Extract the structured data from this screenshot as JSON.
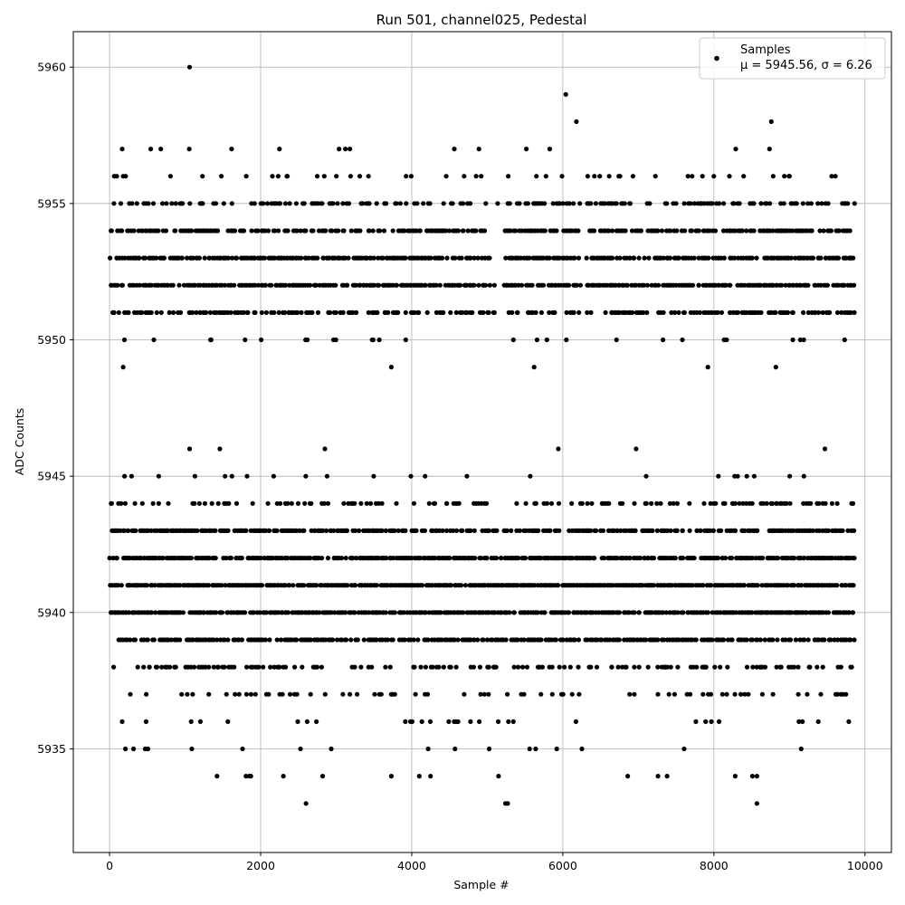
{
  "chart_data": {
    "type": "scatter",
    "title": "Run 501, channel025, Pedestal",
    "xlabel": "Sample #",
    "ylabel": "ADC Counts",
    "xlim": [
      -480,
      10350
    ],
    "ylim": [
      5931.2,
      5961.3
    ],
    "xticks": [
      0,
      2000,
      4000,
      6000,
      8000,
      10000
    ],
    "yticks": [
      5935,
      5940,
      5945,
      5950,
      5955,
      5960
    ],
    "grid": true,
    "legend_position": "top-right",
    "series": [
      {
        "name": "Samples",
        "stats": "μ = 5945.56, σ = 6.26",
        "color": "#000000",
        "n_samples": 10000,
        "sample_step": 24,
        "level_density": {
          "5933": 0.006,
          "5934": 0.012,
          "5935": 0.035,
          "5936": 0.06,
          "5937": 0.14,
          "5938": 0.38,
          "5939": 0.7,
          "5940": 0.85,
          "5941": 0.9,
          "5942": 0.85,
          "5943": 0.7,
          "5944": 0.3,
          "5945": 0.05,
          "5946": 0.005,
          "5949": 0.005,
          "5950": 0.08,
          "5951": 0.55,
          "5952": 0.8,
          "5953": 0.8,
          "5954": 0.65,
          "5955": 0.4,
          "5956": 0.12,
          "5957": 0.03,
          "5958": 0.005,
          "5959": 0.002,
          "5960": 0.001
        },
        "outliers": [
          {
            "x": 1060,
            "y": 5960
          },
          {
            "x": 6040,
            "y": 5959
          },
          {
            "x": 6180,
            "y": 5958
          },
          {
            "x": 8760,
            "y": 5958
          },
          {
            "x": 180,
            "y": 5949
          },
          {
            "x": 3730,
            "y": 5949
          },
          {
            "x": 5620,
            "y": 5949
          },
          {
            "x": 7920,
            "y": 5949
          },
          {
            "x": 8820,
            "y": 5949
          },
          {
            "x": 1060,
            "y": 5946
          },
          {
            "x": 1460,
            "y": 5946
          },
          {
            "x": 2850,
            "y": 5946
          },
          {
            "x": 5940,
            "y": 5946
          },
          {
            "x": 6970,
            "y": 5946
          },
          {
            "x": 9470,
            "y": 5946
          },
          {
            "x": 2600,
            "y": 5933
          },
          {
            "x": 5240,
            "y": 5933
          },
          {
            "x": 5270,
            "y": 5933
          },
          {
            "x": 8570,
            "y": 5933
          },
          {
            "x": 210,
            "y": 5935
          },
          {
            "x": 1850,
            "y": 5934
          },
          {
            "x": 1870,
            "y": 5934
          },
          {
            "x": 2300,
            "y": 5934
          },
          {
            "x": 3730,
            "y": 5934
          },
          {
            "x": 5150,
            "y": 5934
          },
          {
            "x": 7260,
            "y": 5934
          },
          {
            "x": 7380,
            "y": 5934
          },
          {
            "x": 8510,
            "y": 5934
          },
          {
            "x": 8570,
            "y": 5934
          }
        ]
      }
    ]
  }
}
